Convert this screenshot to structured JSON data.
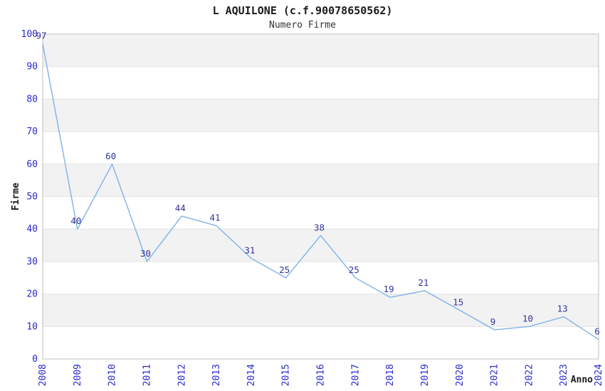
{
  "page": {
    "title": "L AQUILONE (c.f.90078650562)",
    "subtitle": "Numero Firme"
  },
  "chart_data": {
    "type": "line",
    "title": "L AQUILONE (c.f.90078650562)",
    "subtitle": "Numero Firme",
    "xlabel": "Anno",
    "ylabel": "Firme",
    "x": [
      2008,
      2009,
      2010,
      2011,
      2012,
      2013,
      2014,
      2015,
      2016,
      2017,
      2018,
      2019,
      2020,
      2021,
      2022,
      2023,
      2024
    ],
    "values": [
      97,
      40,
      60,
      30,
      44,
      41,
      31,
      25,
      38,
      25,
      19,
      21,
      15,
      9,
      10,
      13,
      6
    ],
    "ylim": [
      0,
      100
    ],
    "ytick_step": 10,
    "grid": true,
    "legend": "none",
    "data_labels_visible": true,
    "colors": {
      "line": "#7fb2e8",
      "tick_label": "#2929cc",
      "data_label": "#333399",
      "axis_title": "#1a1a1a",
      "band_alt": "#f2f2f2",
      "band_main": "#ffffff",
      "gridline": "#e2e2e2",
      "border": "#bfbfbf",
      "background": "#ffffff"
    }
  }
}
